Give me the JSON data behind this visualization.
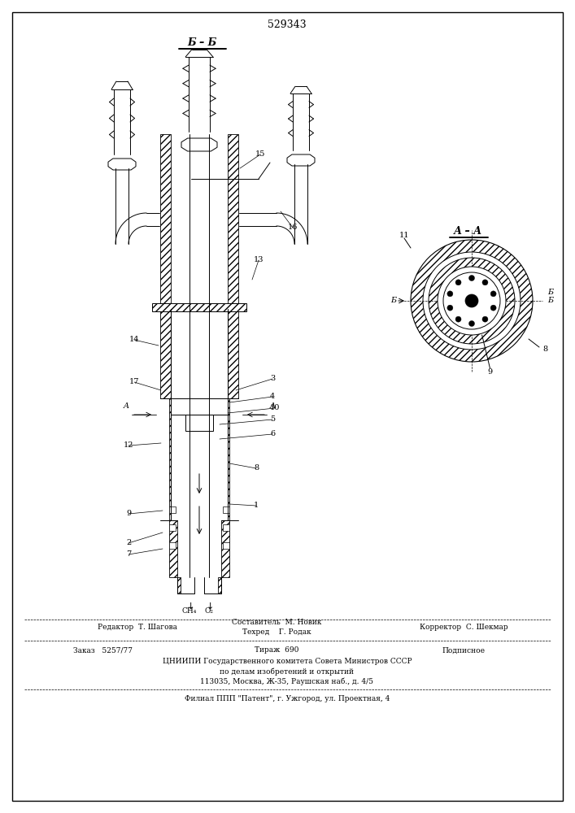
{
  "patent_number": "529343",
  "bg_color": "#ffffff",
  "footer": {
    "editor": "Редактор  Т. Шагова",
    "compiler_line1": "Составитель  М. Новик",
    "compiler_line2": "Техред    Г. Родак",
    "corrector": "Корректор  С. Шекмар",
    "order": "Заказ   5257/77",
    "circulation": "Тираж  690",
    "subscription": "Подписное",
    "org1": "ЦНИИПИ Государственного комитета Совета Министров СССР",
    "org2": "по делам изобретений и открытий",
    "address": "113035, Москва, Ж-35, Раушская наб., д. 4/5",
    "branch": "Филиал ППП \"Патент\", г. Ужгород, ул. Проектная, 4"
  }
}
